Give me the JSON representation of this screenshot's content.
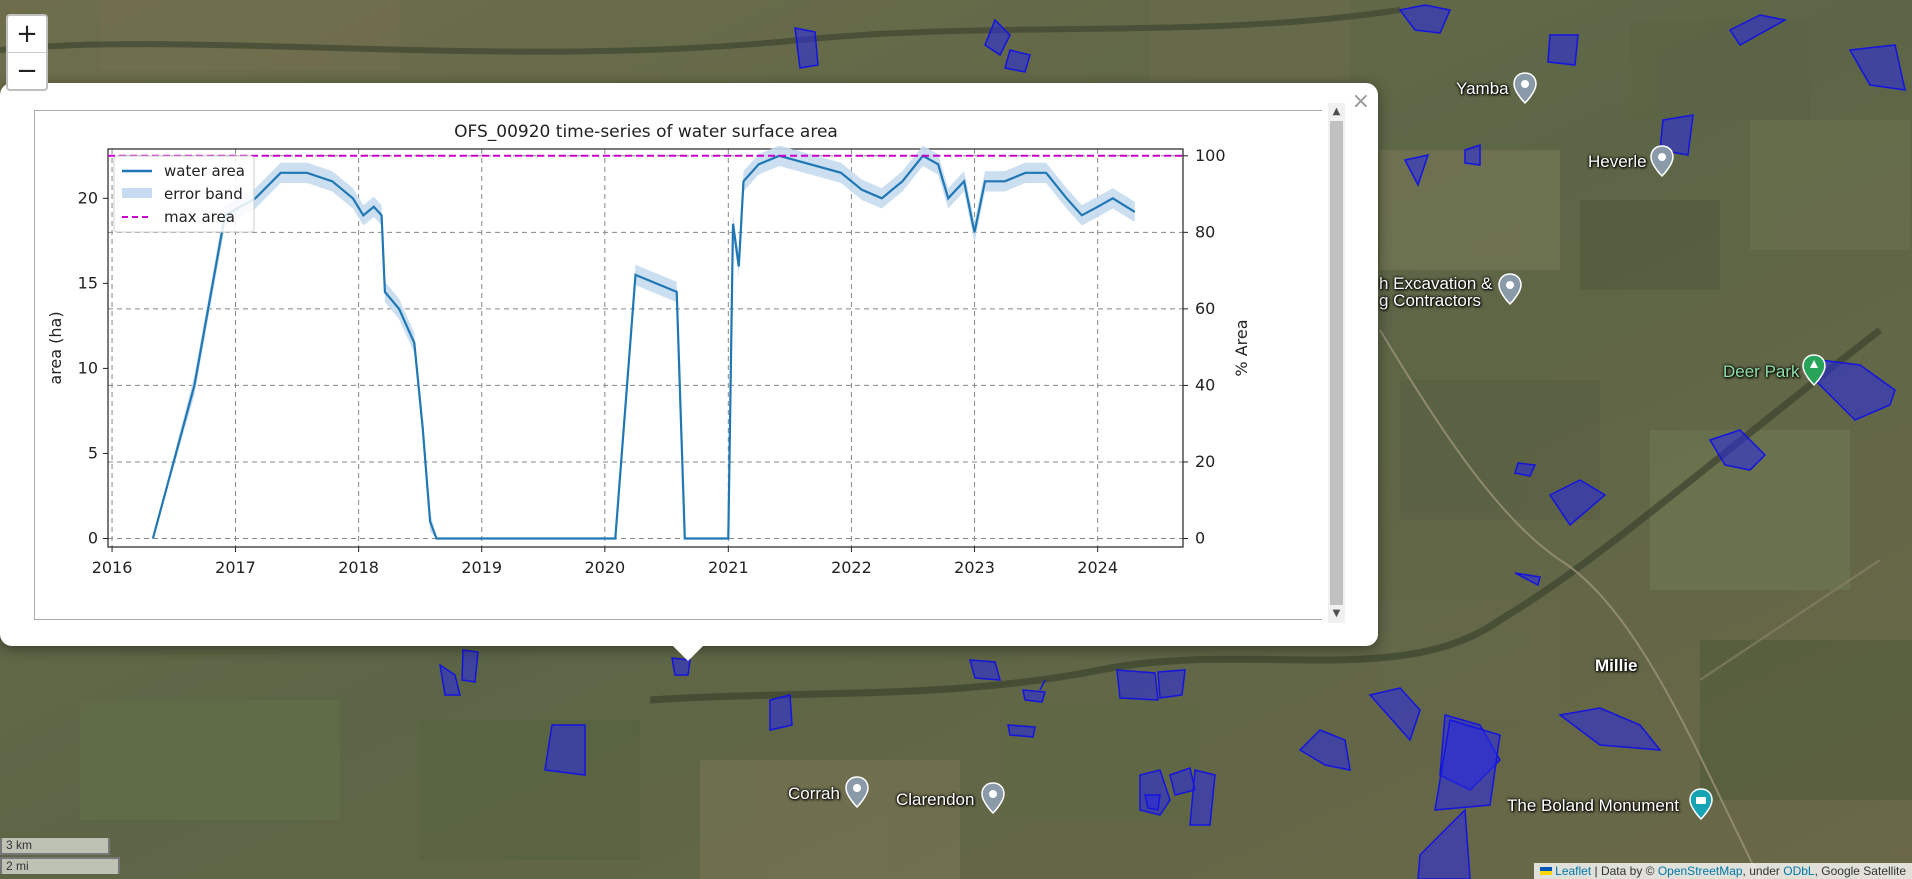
{
  "zoom": {
    "in_label": "+",
    "out_label": "−"
  },
  "places": [
    {
      "name": "Yamba"
    },
    {
      "name": "Heverle"
    },
    {
      "name": "h Excavation &"
    },
    {
      "name": "g Contractors"
    },
    {
      "name": "Deer Park"
    },
    {
      "name": "Millie"
    },
    {
      "name": "Corrah"
    },
    {
      "name": "Clarendon"
    },
    {
      "name": "The Boland Monument"
    }
  ],
  "popup": {
    "close_label": "×"
  },
  "scale": {
    "km": "3 km",
    "mi": "2 mi"
  },
  "attribution": {
    "leaflet": "Leaflet",
    "data_by": " | Data by © ",
    "osm": "OpenStreetMap",
    "under": ", under ",
    "odbl": "ODbL",
    "satellite": ", Google Satellite"
  },
  "colors": {
    "line": "#1f77b4",
    "band": "#c6dbef",
    "max": "#cc00cc",
    "polygon": "#1414e0"
  },
  "chart_data": {
    "type": "line",
    "title": "OFS_00920 time-series of water surface area",
    "ylabel": "area (ha)",
    "ylabel_right": "% Area",
    "ylim": [
      -0.5,
      22.9
    ],
    "ylim_right": [
      0,
      100
    ],
    "xlim": [
      "2015-12-20",
      "2024-09-10"
    ],
    "x_ticks": [
      "2016",
      "2017",
      "2018",
      "2019",
      "2020",
      "2021",
      "2022",
      "2023",
      "2024"
    ],
    "y_ticks": [
      0,
      5,
      10,
      15,
      20
    ],
    "y_ticks_right": [
      0,
      20,
      40,
      60,
      80,
      100
    ],
    "grid": true,
    "legend_position": "top-left",
    "legend": [
      "water area",
      "error band",
      "max area"
    ],
    "max_area": 22.5,
    "series": [
      {
        "name": "water area",
        "x": [
          "2016-05-01",
          "2016-09-01",
          "2016-12-01",
          "2017-03-01",
          "2017-05-15",
          "2017-08-01",
          "2017-10-15",
          "2017-12-15",
          "2018-01-15",
          "2018-02-15",
          "2018-03-10",
          "2018-03-20",
          "2018-05-01",
          "2018-06-15",
          "2018-07-10",
          "2018-08-01",
          "2018-08-20",
          "2018-09-01",
          "2019-01-01",
          "2019-06-01",
          "2020-01-01",
          "2020-02-01",
          "2020-04-01",
          "2020-06-01",
          "2020-08-01",
          "2020-08-25",
          "2020-09-10",
          "2020-10-01",
          "2021-01-01",
          "2021-01-15",
          "2021-02-01",
          "2021-02-15",
          "2021-04-01",
          "2021-06-01",
          "2021-09-01",
          "2021-12-01",
          "2022-02-01",
          "2022-04-01",
          "2022-06-01",
          "2022-08-01",
          "2022-09-15",
          "2022-10-15",
          "2022-12-01",
          "2023-01-01",
          "2023-02-01",
          "2023-04-01",
          "2023-06-01",
          "2023-08-01",
          "2023-10-01",
          "2023-11-15",
          "2024-01-01",
          "2024-02-15",
          "2024-04-20"
        ],
        "values": [
          0,
          9,
          19,
          20,
          21.5,
          21.5,
          21,
          20,
          19,
          19.5,
          19,
          14.5,
          13.5,
          11.5,
          6.5,
          1,
          0,
          0,
          0,
          0,
          0,
          0,
          15.5,
          15,
          14.5,
          0,
          0,
          0,
          0,
          18.5,
          16,
          21,
          22,
          22.5,
          22,
          21.5,
          20.5,
          20,
          21,
          22.5,
          22,
          20,
          21,
          18,
          21,
          21,
          21.5,
          21.5,
          20,
          19,
          19.5,
          20,
          19.2
        ]
      }
    ],
    "error_band": 0.6
  }
}
